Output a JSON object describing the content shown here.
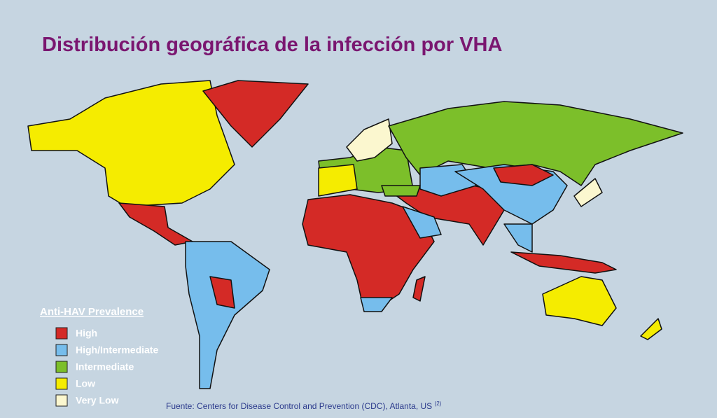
{
  "title": "Distribución  geográfica de la  infección por  VHA",
  "legend": {
    "title": "Anti-HAV Prevalence",
    "items": [
      {
        "label": "High",
        "color": "#d42a26"
      },
      {
        "label": "High/Intermediate",
        "color": "#76bdec"
      },
      {
        "label": "Intermediate",
        "color": "#7cbf2a"
      },
      {
        "label": "Low",
        "color": "#f5ec00"
      },
      {
        "label": "Very Low",
        "color": "#fbf7cf"
      }
    ]
  },
  "source": {
    "text": "Fuente:  Centers for Disease Control and Prevention (CDC), Atlanta, US",
    "ref": "(2)"
  }
}
